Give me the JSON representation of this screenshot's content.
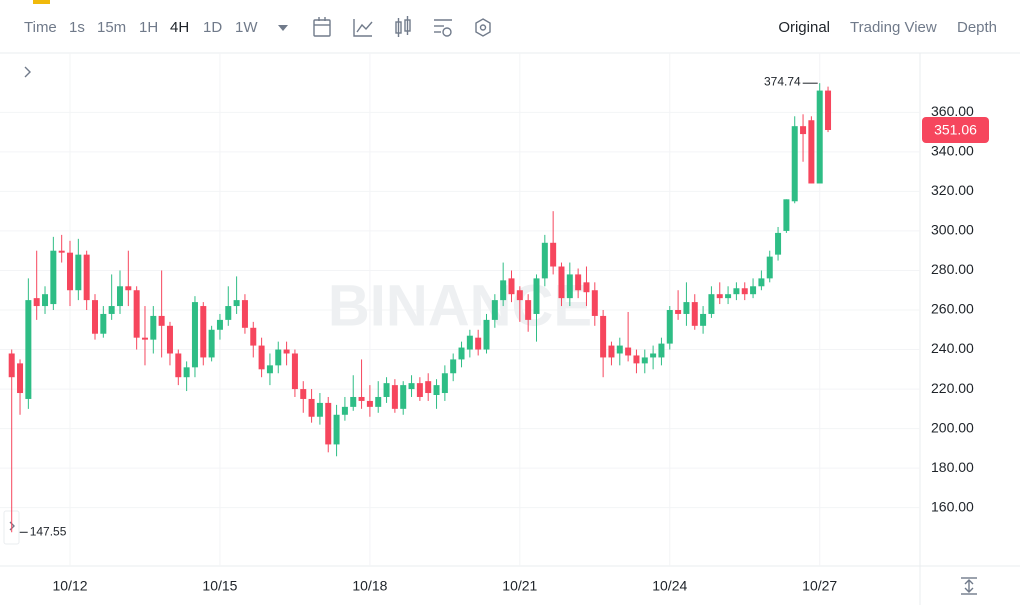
{
  "toolbar": {
    "intervals": [
      "Time",
      "1s",
      "15m",
      "1H",
      "4H",
      "1D",
      "1W"
    ],
    "views": [
      "Original",
      "Trading View",
      "Depth"
    ]
  },
  "chart_data": {
    "type": "candlestick",
    "watermark": "BINANCE",
    "categories": [
      null,
      null,
      null,
      null,
      null,
      null,
      null,
      "10/12",
      null,
      null,
      null,
      null,
      null,
      null,
      null,
      null,
      null,
      null,
      null,
      null,
      null,
      null,
      null,
      null,
      null,
      "10/15",
      null,
      null,
      null,
      null,
      null,
      null,
      null,
      null,
      null,
      null,
      null,
      null,
      null,
      null,
      null,
      null,
      null,
      "10/18",
      null,
      null,
      null,
      null,
      null,
      null,
      null,
      null,
      null,
      null,
      null,
      null,
      null,
      null,
      null,
      null,
      null,
      "10/21",
      null,
      null,
      null,
      null,
      null,
      null,
      null,
      null,
      null,
      null,
      null,
      null,
      null,
      null,
      null,
      null,
      null,
      "10/24",
      null,
      null,
      null,
      null,
      null,
      null,
      null,
      null,
      null,
      null,
      null,
      null,
      null,
      null,
      null,
      null,
      null,
      "10/27",
      null
    ],
    "open": [
      238,
      233,
      215,
      266,
      262,
      263,
      290,
      289,
      270,
      288,
      265,
      248,
      258,
      262,
      272,
      270,
      246,
      245,
      257,
      252,
      238,
      226,
      231,
      262,
      236,
      250,
      255,
      262,
      265,
      251,
      242,
      228,
      232,
      240,
      238,
      220,
      215,
      206,
      213,
      192,
      207,
      211,
      216,
      214,
      211,
      216,
      222,
      210,
      220,
      223,
      224,
      217,
      218,
      228,
      235,
      240,
      246,
      240,
      255,
      265,
      276,
      270,
      265,
      258,
      276,
      294,
      282,
      266,
      278,
      274,
      270,
      257,
      242,
      238,
      241,
      237,
      233,
      236,
      236,
      243,
      260,
      258,
      264,
      252,
      258,
      268,
      266,
      268,
      271,
      268,
      272,
      276,
      288,
      300,
      315,
      353,
      356,
      324,
      371
    ],
    "high": [
      240,
      235,
      276,
      290,
      272,
      297,
      298,
      295,
      296,
      290,
      268,
      262,
      278,
      280,
      290,
      272,
      262,
      262,
      280,
      254,
      240,
      234,
      267,
      264,
      252,
      258,
      272,
      277,
      268,
      254,
      246,
      238,
      244,
      244,
      240,
      224,
      220,
      218,
      216,
      212,
      216,
      227,
      235,
      222,
      224,
      226,
      225,
      224,
      227,
      226,
      228,
      225,
      232,
      238,
      244,
      250,
      250,
      258,
      268,
      284,
      280,
      272,
      268,
      278,
      298,
      310,
      284,
      284,
      281,
      282,
      274,
      260,
      244,
      246,
      259,
      240,
      240,
      242,
      246,
      262,
      270,
      274,
      268,
      262,
      272,
      274,
      272,
      274,
      274,
      276,
      280,
      290,
      302,
      316,
      358,
      359,
      358,
      374.74,
      373
    ],
    "low": [
      147.55,
      207,
      210,
      255,
      258,
      260,
      284,
      262,
      265,
      260,
      245,
      246,
      255,
      258,
      262,
      240,
      232,
      238,
      236,
      232,
      222,
      219,
      226,
      232,
      234,
      245,
      252,
      258,
      248,
      236,
      226,
      222,
      228,
      232,
      216,
      208,
      203,
      202,
      188,
      186,
      204,
      209,
      210,
      206,
      208,
      213,
      208,
      207,
      216,
      214,
      214,
      210,
      214,
      224,
      231,
      236,
      237,
      238,
      251,
      262,
      264,
      254,
      249,
      244,
      272,
      278,
      262,
      262,
      266,
      262,
      252,
      226,
      232,
      232,
      234,
      228,
      228,
      230,
      232,
      240,
      255,
      252,
      250,
      248,
      256,
      263,
      263,
      265,
      265,
      266,
      270,
      274,
      285,
      299,
      314,
      335,
      324,
      324,
      350
    ],
    "close": [
      226,
      218,
      265,
      262,
      268,
      290,
      289,
      270,
      288,
      265,
      248,
      258,
      262,
      272,
      270,
      246,
      245,
      257,
      252,
      238,
      226,
      231,
      264,
      236,
      250,
      255,
      262,
      265,
      251,
      242,
      230,
      232,
      240,
      238,
      220,
      215,
      206,
      213,
      192,
      207,
      211,
      216,
      214,
      211,
      216,
      223,
      210,
      222,
      223,
      216,
      218,
      222,
      228,
      235,
      241,
      247,
      240,
      255,
      265,
      275,
      268,
      265,
      255,
      276,
      294,
      282,
      266,
      278,
      270,
      269,
      257,
      236,
      236,
      242,
      237,
      233,
      236,
      238,
      243,
      260,
      258,
      264,
      252,
      258,
      268,
      266,
      268,
      271,
      268,
      272,
      276,
      287,
      299,
      316,
      353,
      349,
      324,
      371,
      351.06
    ],
    "up_color": "#2ebd85",
    "down_color": "#f6465d",
    "ylim": [
      131,
      389
    ],
    "yticks": [
      {
        "value": 160,
        "label": "160.00"
      },
      {
        "value": 180,
        "label": "180.00"
      },
      {
        "value": 200,
        "label": "200.00"
      },
      {
        "value": 220,
        "label": "220.00"
      },
      {
        "value": 240,
        "label": "240.00"
      },
      {
        "value": 260,
        "label": "260.00"
      },
      {
        "value": 280,
        "label": "280.00"
      },
      {
        "value": 300,
        "label": "300.00"
      },
      {
        "value": 320,
        "label": "320.00"
      },
      {
        "value": 340,
        "label": "340.00"
      },
      {
        "value": 360,
        "label": "360.00"
      }
    ],
    "grid": true
  }
}
